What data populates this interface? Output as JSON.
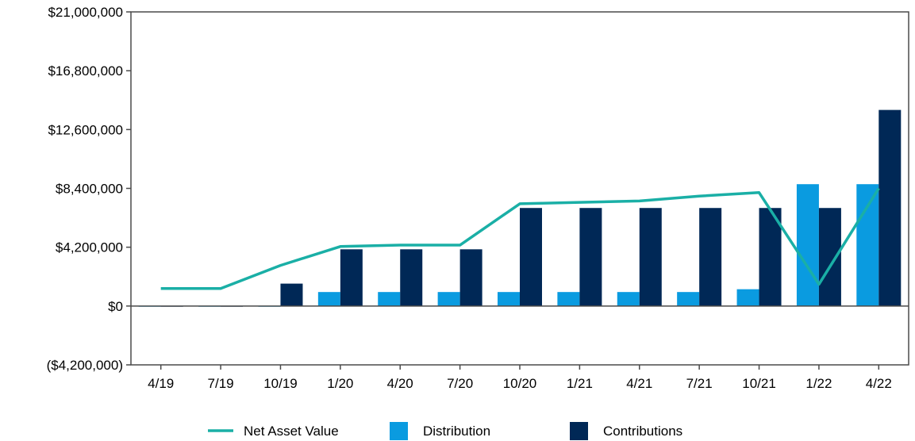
{
  "chart_data": {
    "type": "bar",
    "categories": [
      "4/19",
      "7/19",
      "10/19",
      "1/20",
      "4/20",
      "7/20",
      "10/20",
      "1/21",
      "4/21",
      "7/21",
      "10/21",
      "1/22",
      "4/22"
    ],
    "ylim": [
      -4200000,
      21000000
    ],
    "y_ticks": [
      {
        "value": 21000000,
        "label": "$21,000,000"
      },
      {
        "value": 16800000,
        "label": "$16,800,000"
      },
      {
        "value": 12600000,
        "label": "$12,600,000"
      },
      {
        "value": 8400000,
        "label": "$8,400,000"
      },
      {
        "value": 4200000,
        "label": "$4,200,000"
      },
      {
        "value": 0,
        "label": "$0"
      },
      {
        "value": -4200000,
        "label": "($4,200,000)"
      }
    ],
    "grid": false,
    "legend_position": "bottom",
    "series": [
      {
        "name": "Net Asset Value",
        "type": "line",
        "color": "#1AAFA6",
        "values": [
          1250000,
          1250000,
          2900000,
          4250000,
          4350000,
          4350000,
          7300000,
          7400000,
          7500000,
          7850000,
          8100000,
          1550000,
          8400000
        ]
      },
      {
        "name": "Distribution",
        "type": "bar",
        "color": "#0A9BE0",
        "values": [
          -50000,
          -50000,
          -50000,
          1000000,
          1000000,
          1000000,
          1000000,
          1000000,
          1000000,
          1000000,
          1200000,
          8700000,
          8700000
        ]
      },
      {
        "name": "Contributions",
        "type": "bar",
        "color": "#002856",
        "values": [
          -50000,
          -50000,
          1600000,
          4050000,
          4050000,
          4050000,
          7000000,
          7000000,
          7000000,
          7000000,
          7000000,
          7000000,
          14000000
        ]
      }
    ]
  }
}
